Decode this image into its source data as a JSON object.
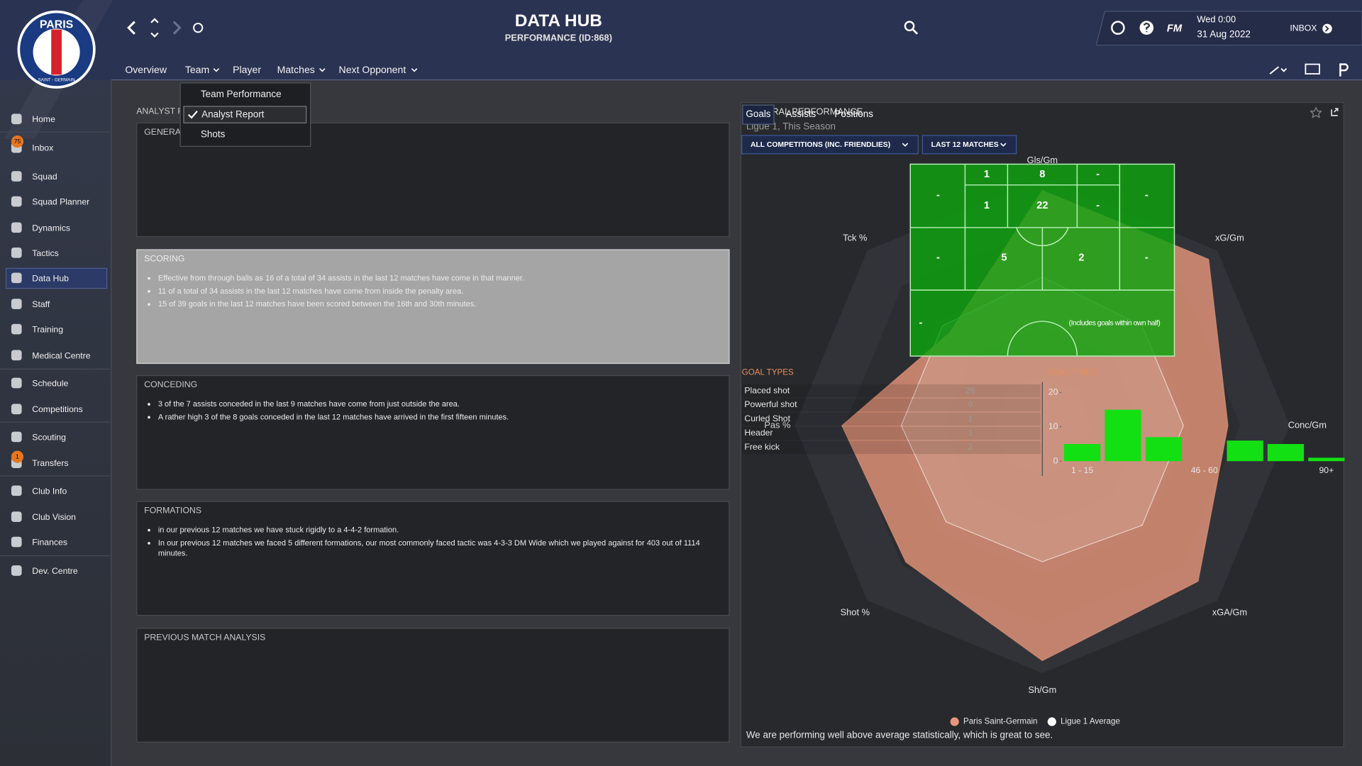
{
  "header": {
    "title": "DATA HUB",
    "subtitle": "PERFORMANCE (ID:868)",
    "badge_text": "PARIS",
    "badge_ring": "SAINT - GERMAIN",
    "game": "FM",
    "time": "Wed 0:00",
    "date": "31 Aug 2022",
    "inbox": "INBOX"
  },
  "tabs": {
    "items": [
      "Overview",
      "Team",
      "Player",
      "Matches",
      "Next Opponent"
    ]
  },
  "dropdown": {
    "items": [
      "Team Performance",
      "Analyst Report",
      "Shots"
    ],
    "checked": 1
  },
  "sidebar": {
    "items": [
      {
        "label": "Home"
      },
      {
        "label": "Inbox",
        "badge": 75
      },
      {
        "label": "Squad"
      },
      {
        "label": "Squad Planner"
      },
      {
        "label": "Dynamics"
      },
      {
        "label": "Tactics"
      },
      {
        "label": "Data Hub"
      },
      {
        "label": "Staff"
      },
      {
        "label": "Training"
      },
      {
        "label": "Medical Centre"
      },
      {
        "label": "Schedule"
      },
      {
        "label": "Competitions"
      },
      {
        "label": "Scouting"
      },
      {
        "label": "Transfers",
        "badge": 1
      },
      {
        "label": "Club Info"
      },
      {
        "label": "Club Vision"
      },
      {
        "label": "Finances"
      },
      {
        "label": "Dev. Centre"
      }
    ],
    "active": 6
  },
  "analyst_report": {
    "title": "ANALYST REPORT",
    "highlighted": 1,
    "sections": [
      {
        "title": "GENERAL",
        "items": []
      },
      {
        "title": "SCORING",
        "items": [
          "Effective from through balls as 16 of a total of 34 assists in the last 12 matches have come in that manner.",
          "11 of a total of 34 assists in the last 12 matches have come from inside the penalty area.",
          "15 of 39 goals in the last 12 matches have been scored between the 16th and 30th minutes."
        ]
      },
      {
        "title": "CONCEDING",
        "items": [
          "3 of the 7 assists conceded in the last 9 matches have come from just outside the area.",
          "A rather high 3 of the 8 goals conceded in the last 12 matches have arrived in the first fifteen minutes."
        ]
      },
      {
        "title": "FORMATIONS",
        "items": [
          "in our previous 12 matches we have stuck rigidly to a 4-4-2 formation.",
          "In our previous 12 matches we faced 5 different formations, our most commonly faced tactic was 4-3-3 DM Wide which we played against for 403 out of 1114 minutes."
        ]
      },
      {
        "title": "PREVIOUS MATCH ANALYSIS",
        "items": []
      }
    ]
  },
  "performance": {
    "title": "GENERAL PERFORMANCE",
    "subtitle": "Ligue 1, This Season",
    "tabs": [
      "Goals",
      "Assists",
      "Positions"
    ],
    "selected_tab": 0,
    "filters": [
      "ALL COMPETITIONS (INC. FRIENDLIES)",
      "LAST 12 MATCHES"
    ],
    "summary": "We are performing well above average statistically, which is great to see.",
    "goal_zones": {
      "cells": [
        "-",
        1,
        8,
        "-",
        "-",
        1,
        22,
        "-",
        "-",
        5,
        2,
        "-",
        "-"
      ],
      "note": "(Includes goals within own half)"
    },
    "goal_types": {
      "title": "GOAL TYPES",
      "rows": [
        {
          "label": "Placed shot",
          "value": 26
        },
        {
          "label": "Powerful shot",
          "value": 9
        },
        {
          "label": "Curled Shot",
          "value": 1
        },
        {
          "label": "Header",
          "value": 1
        },
        {
          "label": "Free kick",
          "value": 2
        }
      ]
    }
  },
  "chart_data": [
    {
      "type": "radar",
      "axes": [
        "Gls/Gm",
        "xG/Gm",
        "Conc/Gm",
        "xGA/Gm",
        "Sh/Gm",
        "Shot %",
        "Pas %",
        "Tck %"
      ],
      "rlim": [
        0,
        100
      ],
      "series": [
        {
          "name": "Paris Saint-Germain",
          "color": "#e8967a",
          "values": [
            95,
            95,
            75,
            89,
            95,
            78,
            81,
            53
          ]
        },
        {
          "name": "Ligue 1 Average",
          "color": "#ffffff",
          "values": [
            60,
            57,
            57,
            57,
            55,
            55,
            57,
            57
          ]
        }
      ]
    },
    {
      "type": "bar",
      "title": "GOAL TIMES",
      "categories": [
        "1 - 15",
        null,
        null,
        "46 - 60",
        null,
        null,
        "90+"
      ],
      "values": [
        5,
        15,
        7,
        0,
        6,
        5,
        1
      ],
      "color": "#13e013",
      "ylim": [
        0,
        20
      ],
      "yticks": [
        0,
        10,
        20
      ]
    }
  ]
}
